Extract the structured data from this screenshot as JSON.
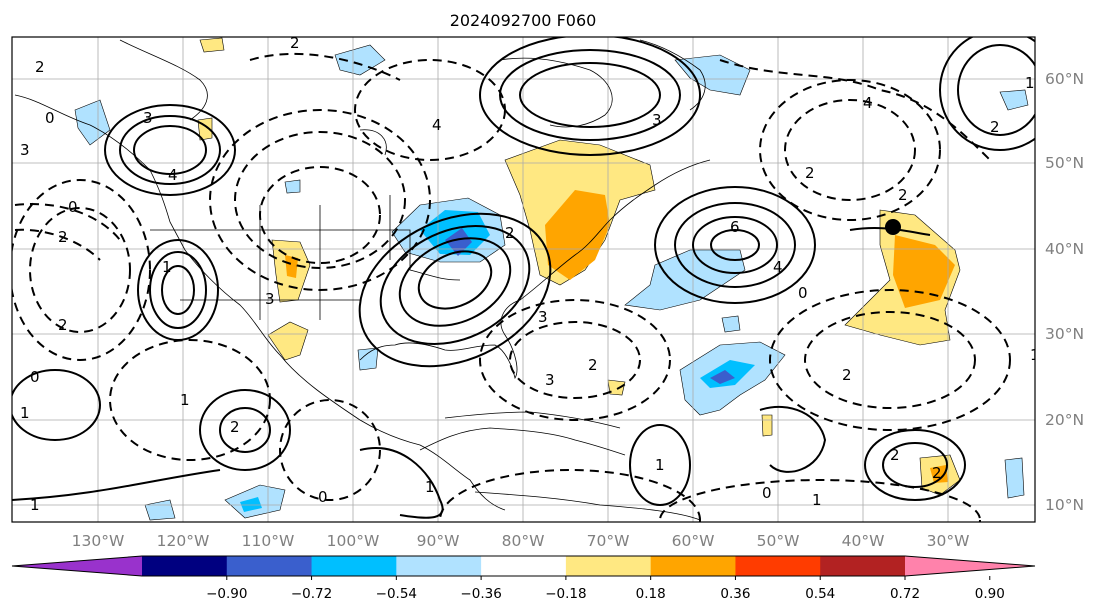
{
  "title": "2024092700 F060",
  "lon_ticks": [
    "130°W",
    "120°W",
    "110°W",
    "100°W",
    "90°W",
    "80°W",
    "70°W",
    "60°W",
    "50°W",
    "40°W",
    "30°W"
  ],
  "lat_ticks": [
    "60°N",
    "50°N",
    "40°N",
    "30°N",
    "20°N",
    "10°N"
  ],
  "colorbar": {
    "colors": [
      "#9932cc",
      "#000080",
      "#3a5fcd",
      "#00bfff",
      "#b0e2ff",
      "#ffffff",
      "#ffe882",
      "#ffa500",
      "#ff3c00",
      "#b22222",
      "#ff82ab"
    ],
    "ticks": [
      "−0.90",
      "−0.72",
      "−0.54",
      "−0.36",
      "−0.18",
      "0.18",
      "0.36",
      "0.54",
      "0.72",
      "0.90"
    ]
  },
  "contour_labels": [
    "2",
    "2",
    "3",
    "4",
    "0",
    "3",
    "3",
    "1",
    "2",
    "6",
    "4",
    "2",
    "1",
    "2",
    "0",
    "3",
    "2",
    "2",
    "3",
    "4",
    "0",
    "2",
    "4",
    "1",
    "2",
    "2",
    "1",
    "3",
    "0",
    "1",
    "2",
    "1",
    "1",
    "0",
    "0",
    "1",
    "2",
    "2",
    "1"
  ],
  "marker": "storm-center-dot"
}
